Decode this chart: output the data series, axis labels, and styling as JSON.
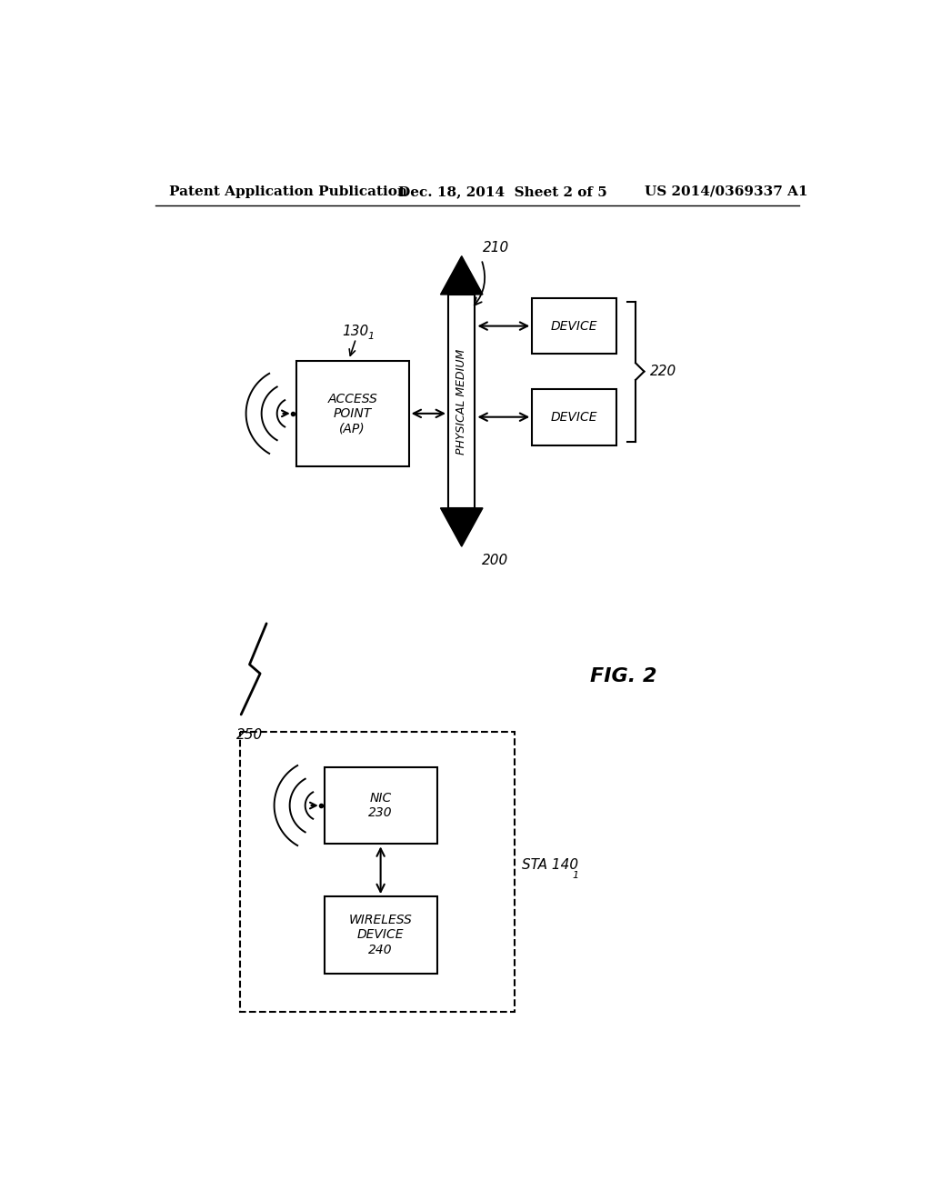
{
  "bg_color": "#ffffff",
  "header_left": "Patent Application Publication",
  "header_mid": "Dec. 18, 2014  Sheet 2 of 5",
  "header_right": "US 2014/0369337 A1",
  "fig_label": "FIG. 2"
}
